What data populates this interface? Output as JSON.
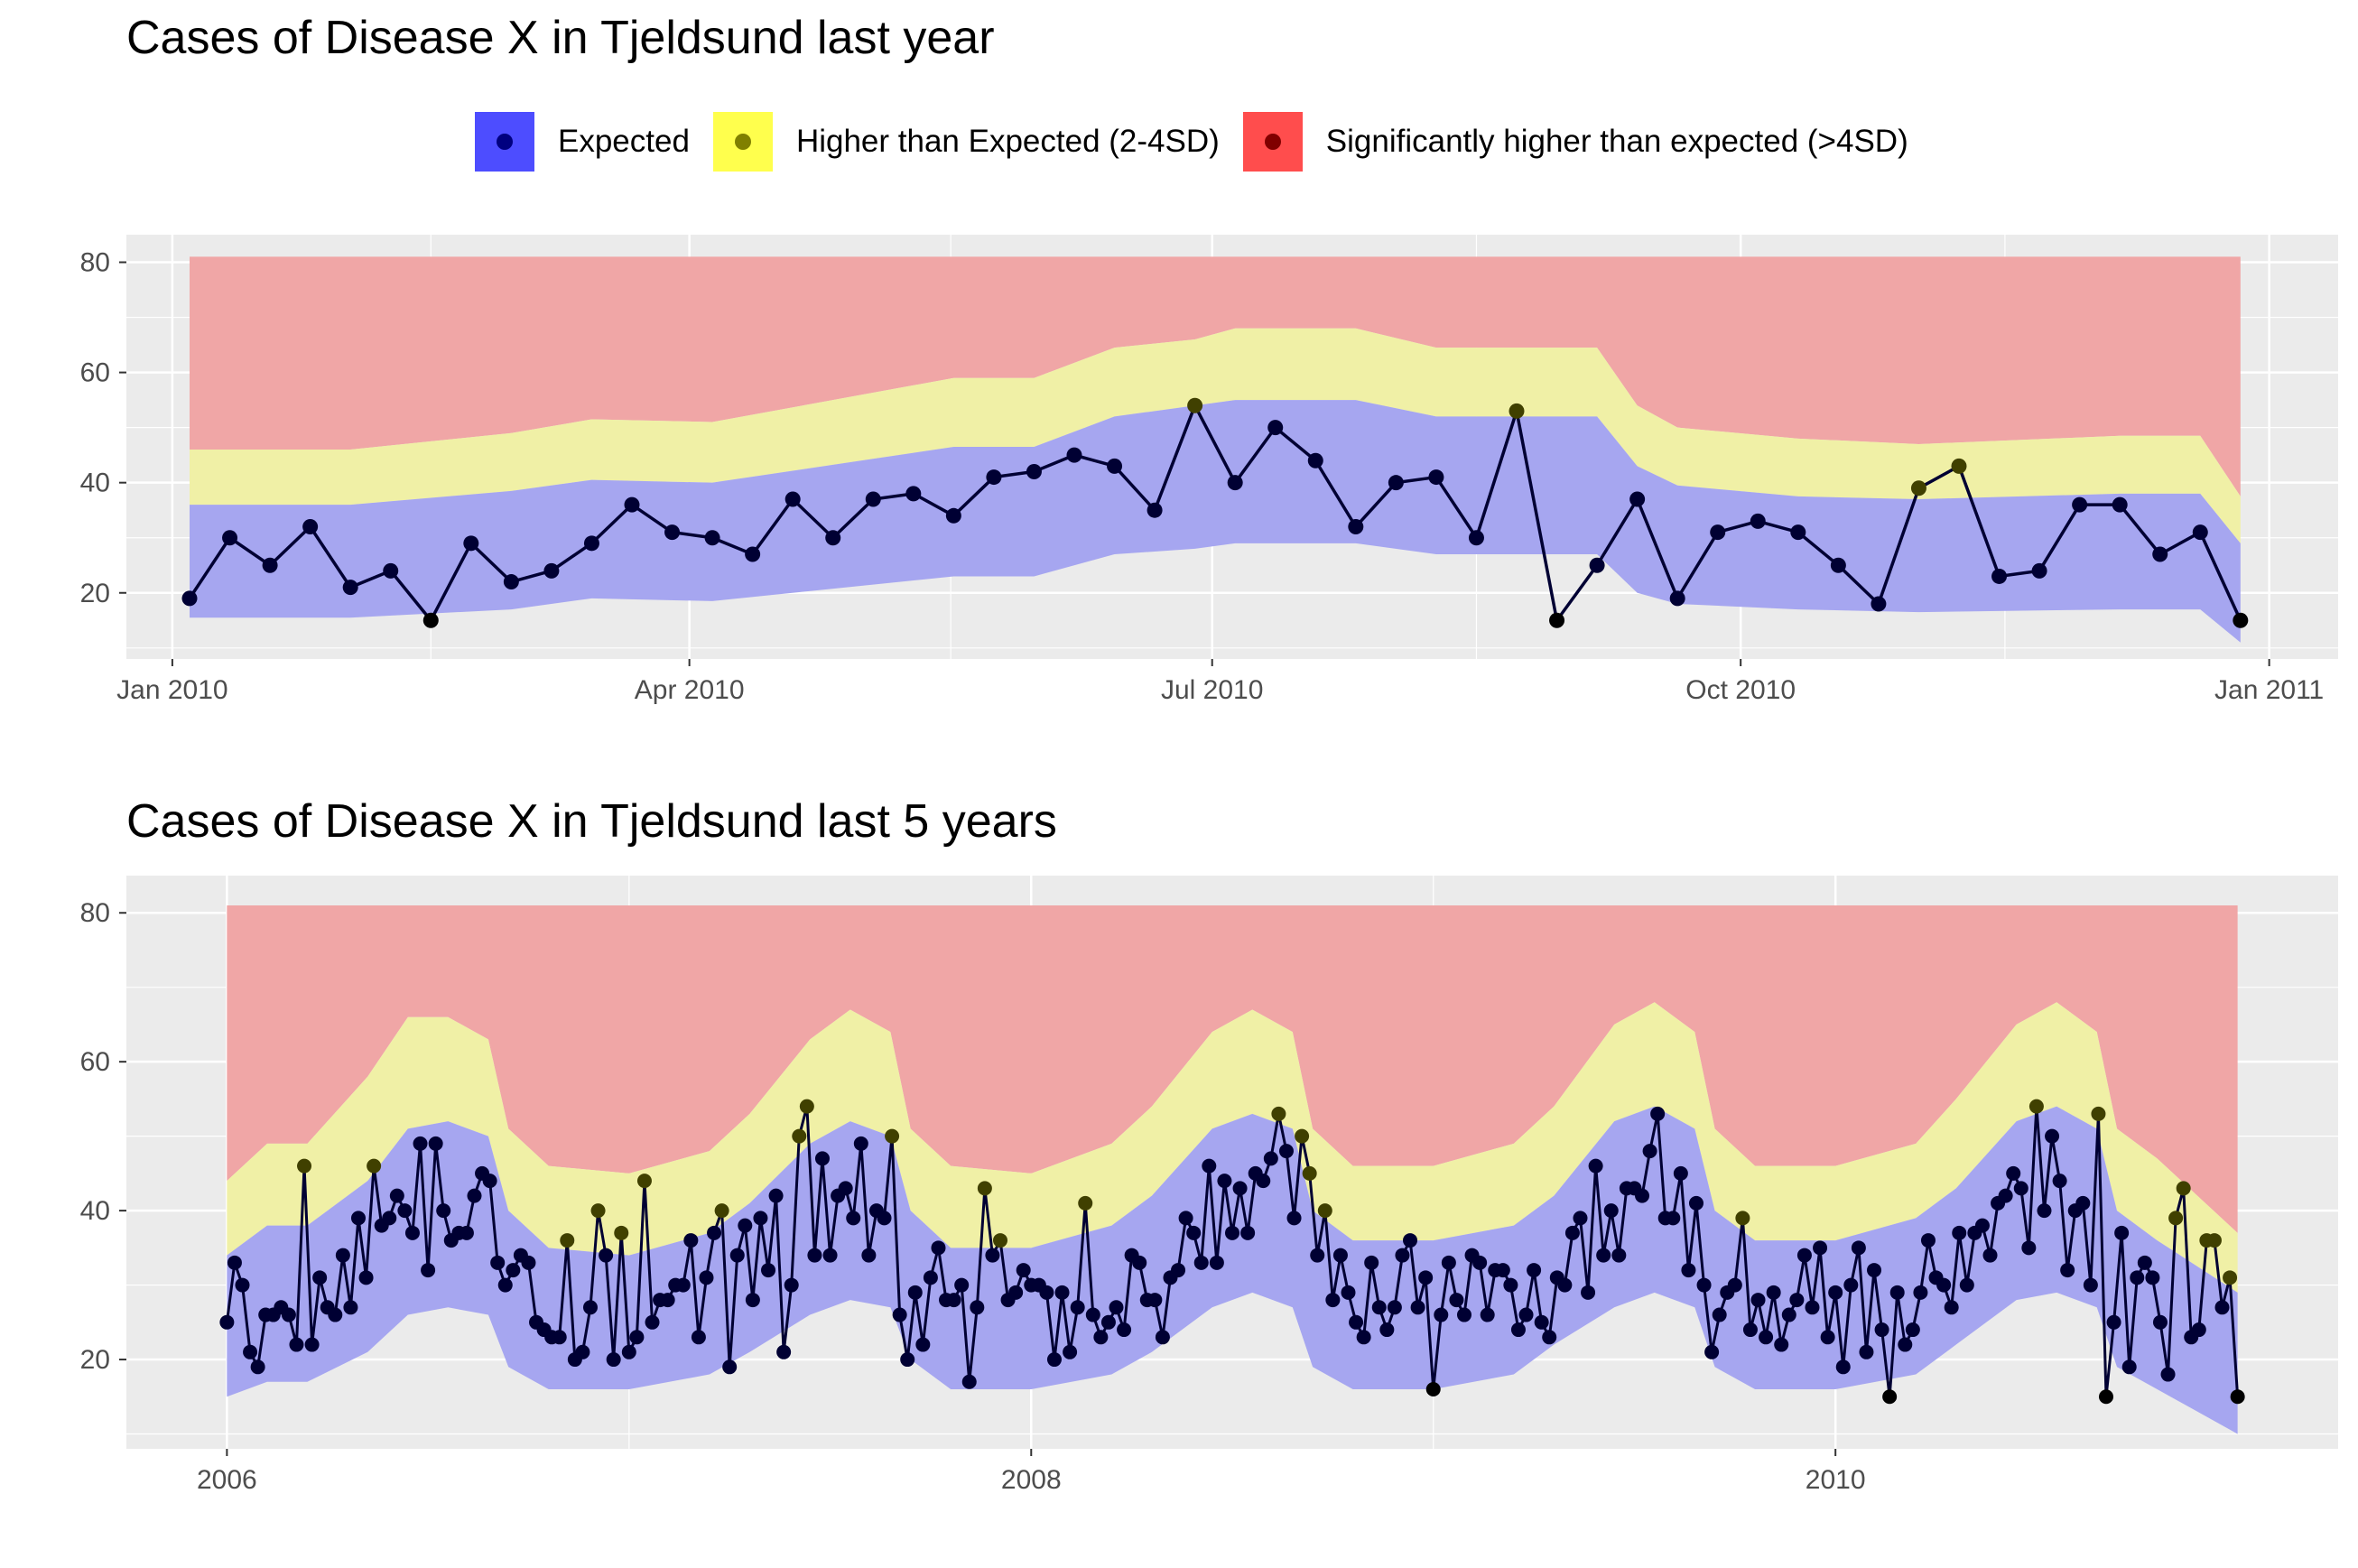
{
  "chart_data": [
    {
      "type": "area",
      "title": "Cases of Disease X in Tjeldsund last year",
      "xlabel": "",
      "ylabel": "",
      "xticks": [
        "Jan 2010",
        "Apr 2010",
        "Jul 2010",
        "Oct 2010",
        "Jan 2011"
      ],
      "xtick_dates": [
        "2010-01-01",
        "2010-04-01",
        "2010-07-01",
        "2010-10-01",
        "2011-01-01"
      ],
      "xlim": [
        "2009-12-24",
        "2011-01-13"
      ],
      "yticks": [
        20,
        40,
        60,
        80
      ],
      "ylim": [
        8,
        85
      ],
      "grid": true,
      "bands": {
        "dates": [
          "2010-01-04",
          "2010-02-01",
          "2010-03-01",
          "2010-03-15",
          "2010-04-05",
          "2010-05-17",
          "2010-05-31",
          "2010-06-14",
          "2010-06-28",
          "2010-07-05",
          "2010-07-26",
          "2010-08-09",
          "2010-09-06",
          "2010-09-13",
          "2010-09-20",
          "2010-10-11",
          "2010-11-01",
          "2010-12-06",
          "2010-12-20",
          "2010-12-27"
        ],
        "lower": [
          15.5,
          15.5,
          17,
          19,
          18.5,
          23,
          23,
          27,
          28,
          29,
          29,
          27,
          27,
          20,
          18,
          17,
          16.5,
          17,
          17,
          11
        ],
        "upper_expected": [
          36,
          36,
          38.5,
          40.5,
          40,
          46.5,
          46.5,
          52,
          54,
          55,
          55,
          52,
          52,
          43,
          39.5,
          37.5,
          37,
          38,
          38,
          29
        ],
        "upper_high": [
          46,
          46,
          49,
          51.5,
          51,
          59,
          59,
          64.5,
          66,
          68,
          68,
          64.5,
          64.5,
          54,
          50,
          48,
          47,
          48.5,
          48.5,
          37.5
        ],
        "upper_significant": 81
      },
      "series": [
        {
          "name": "Cases",
          "dates": [
            "2010-01-04",
            "2010-01-11",
            "2010-01-18",
            "2010-01-25",
            "2010-02-01",
            "2010-02-08",
            "2010-02-15",
            "2010-02-22",
            "2010-03-01",
            "2010-03-08",
            "2010-03-15",
            "2010-03-22",
            "2010-03-29",
            "2010-04-05",
            "2010-04-12",
            "2010-04-19",
            "2010-04-26",
            "2010-05-03",
            "2010-05-10",
            "2010-05-17",
            "2010-05-24",
            "2010-05-31",
            "2010-06-07",
            "2010-06-14",
            "2010-06-21",
            "2010-06-28",
            "2010-07-05",
            "2010-07-12",
            "2010-07-19",
            "2010-07-26",
            "2010-08-02",
            "2010-08-09",
            "2010-08-16",
            "2010-08-23",
            "2010-08-30",
            "2010-09-06",
            "2010-09-13",
            "2010-09-20",
            "2010-09-27",
            "2010-10-04",
            "2010-10-11",
            "2010-10-18",
            "2010-10-25",
            "2010-11-01",
            "2010-11-08",
            "2010-11-15",
            "2010-11-22",
            "2010-11-29",
            "2010-12-06",
            "2010-12-13",
            "2010-12-20",
            "2010-12-27"
          ],
          "values": [
            19,
            30,
            25,
            32,
            21,
            24,
            15,
            29,
            22,
            24,
            29,
            36,
            31,
            30,
            27,
            37,
            30,
            37,
            38,
            34,
            41,
            42,
            45,
            43,
            35,
            54,
            40,
            50,
            44,
            32,
            40,
            41,
            30,
            53,
            15,
            25,
            37,
            19,
            31,
            33,
            31,
            25,
            18,
            39,
            43,
            23,
            24,
            36,
            36,
            27,
            31,
            15
          ],
          "status": [
            "expected",
            "expected",
            "expected",
            "expected",
            "expected",
            "expected",
            "expected",
            "expected",
            "expected",
            "expected",
            "expected",
            "expected",
            "expected",
            "expected",
            "expected",
            "expected",
            "expected",
            "expected",
            "expected",
            "expected",
            "expected",
            "expected",
            "expected",
            "expected",
            "expected",
            "high",
            "expected",
            "expected",
            "expected",
            "expected",
            "expected",
            "expected",
            "expected",
            "high",
            "expected",
            "expected",
            "expected",
            "expected",
            "expected",
            "expected",
            "expected",
            "expected",
            "expected",
            "high",
            "high",
            "expected",
            "expected",
            "expected",
            "expected",
            "expected",
            "expected",
            "expected"
          ]
        }
      ]
    },
    {
      "type": "area",
      "title": "Cases of Disease X in Tjeldsund last 5 years",
      "xlabel": "",
      "ylabel": "",
      "xticks": [
        "2006",
        "2008",
        "2010"
      ],
      "xtick_years": [
        2006,
        2008,
        2010
      ],
      "xlim": [
        2005.75,
        2011.25
      ],
      "yticks": [
        20,
        40,
        60,
        80
      ],
      "ylim": [
        8,
        85
      ],
      "grid": true,
      "bands": {
        "years": [
          2006.0,
          2006.1,
          2006.2,
          2006.35,
          2006.45,
          2006.55,
          2006.65,
          2006.7,
          2006.8,
          2007.0,
          2007.2,
          2007.3,
          2007.45,
          2007.55,
          2007.65,
          2007.7,
          2007.8,
          2008.0,
          2008.2,
          2008.3,
          2008.45,
          2008.55,
          2008.65,
          2008.7,
          2008.8,
          2009.0,
          2009.2,
          2009.3,
          2009.45,
          2009.55,
          2009.65,
          2009.7,
          2009.8,
          2010.0,
          2010.2,
          2010.3,
          2010.45,
          2010.55,
          2010.65,
          2010.7,
          2010.8,
          2011.0
        ],
        "lower": [
          15,
          17,
          17,
          21,
          26,
          27,
          26,
          19,
          16,
          16,
          18,
          21,
          26,
          28,
          27,
          20,
          16,
          16,
          18,
          21,
          27,
          29,
          27,
          19,
          16,
          16,
          18,
          22,
          27,
          29,
          27,
          19,
          16,
          16,
          18,
          22,
          28,
          29,
          27,
          19,
          16,
          10
        ],
        "upper_expected": [
          34,
          38,
          38,
          44,
          51,
          52,
          50,
          40,
          35,
          34,
          37,
          41,
          49,
          52,
          50,
          40,
          35,
          35,
          38,
          42,
          51,
          53,
          51,
          40,
          36,
          36,
          38,
          42,
          52,
          54,
          51,
          40,
          36,
          36,
          39,
          43,
          52,
          54,
          51,
          40,
          36,
          29
        ],
        "upper_high": [
          44,
          49,
          49,
          58,
          66,
          66,
          63,
          51,
          46,
          45,
          48,
          53,
          63,
          67,
          64,
          51,
          46,
          45,
          49,
          54,
          64,
          67,
          64,
          51,
          46,
          46,
          49,
          54,
          65,
          68,
          64,
          51,
          46,
          46,
          49,
          55,
          65,
          68,
          64,
          51,
          47,
          37
        ],
        "upper_significant": 81
      },
      "series": [
        {
          "name": "Cases",
          "years_from": 2006.0,
          "years_to": 2011.0,
          "values": [
            25,
            33,
            30,
            21,
            19,
            26,
            26,
            27,
            26,
            22,
            46,
            22,
            31,
            27,
            26,
            34,
            27,
            39,
            31,
            46,
            38,
            39,
            42,
            40,
            37,
            49,
            32,
            49,
            40,
            36,
            37,
            37,
            42,
            45,
            44,
            33,
            30,
            32,
            34,
            33,
            25,
            24,
            23,
            23,
            36,
            20,
            21,
            27,
            40,
            34,
            20,
            37,
            21,
            23,
            44,
            25,
            28,
            28,
            30,
            30,
            36,
            23,
            31,
            37,
            40,
            19,
            34,
            38,
            28,
            39,
            32,
            42,
            21,
            30,
            50,
            54,
            34,
            47,
            34,
            42,
            43,
            39,
            49,
            34,
            40,
            39,
            50,
            26,
            20,
            29,
            22,
            31,
            35,
            28,
            28,
            30,
            17,
            27,
            43,
            34,
            36,
            28,
            29,
            32,
            30,
            30,
            29,
            20,
            29,
            21,
            27,
            41,
            26,
            23,
            25,
            27,
            24,
            34,
            33,
            28,
            28,
            23,
            31,
            32,
            39,
            37,
            33,
            46,
            33,
            44,
            37,
            43,
            37,
            45,
            44,
            47,
            53,
            48,
            39,
            50,
            45,
            34,
            40,
            28,
            34,
            29,
            25,
            23,
            33,
            27,
            24,
            27,
            34,
            36,
            27,
            31,
            16,
            26,
            33,
            28,
            26,
            34,
            33,
            26,
            32,
            32,
            30,
            24,
            26,
            32,
            25,
            23,
            31,
            30,
            37,
            39,
            29,
            46,
            34,
            40,
            34,
            43,
            43,
            42,
            48,
            53,
            39,
            39,
            45,
            32,
            41,
            30,
            21,
            26,
            29,
            30,
            39,
            24,
            28,
            23,
            29,
            22,
            26,
            28,
            34,
            27,
            35,
            23,
            29,
            19,
            30,
            35,
            21,
            32,
            24,
            15,
            29,
            22,
            24,
            29,
            36,
            31,
            30,
            27,
            37,
            30,
            37,
            38,
            34,
            41,
            42,
            45,
            43,
            35,
            54,
            40,
            50,
            44,
            32,
            40,
            41,
            30,
            53,
            15,
            25,
            37,
            19,
            31,
            33,
            31,
            25,
            18,
            39,
            43,
            23,
            24,
            36,
            36,
            27,
            31,
            15
          ],
          "note_status": "points above the blue band drawn olive (2-4SD); isolated low outliers drawn black"
        }
      ]
    }
  ],
  "legend": {
    "items": [
      {
        "label": "Expected",
        "fill": "#4d4dff",
        "dot": "#000080"
      },
      {
        "label": "Higher than Expected (2-4SD)",
        "fill": "#ffff4d",
        "dot": "#808000"
      },
      {
        "label": "Significantly higher than expected (>4SD)",
        "fill": "#ff4d4d",
        "dot": "#800000"
      }
    ]
  },
  "colors": {
    "panel_bg": "#ebebeb",
    "grid": "#ffffff",
    "band_expected": "#a6a6f0",
    "band_high": "#f0f0a6",
    "band_significant": "#f0a6a6",
    "line": "#000033",
    "point_expected": "#000033",
    "point_high": "#404000",
    "point_low": "#000000"
  }
}
